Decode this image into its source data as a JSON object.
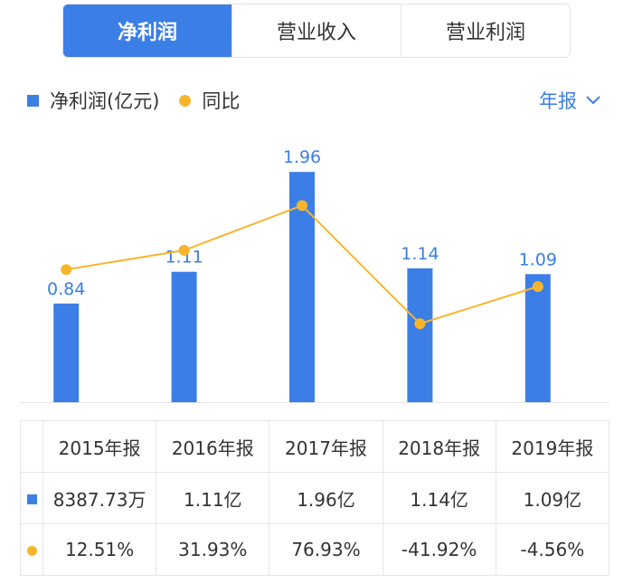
{
  "tabs": [
    {
      "label": "净利润",
      "active": true
    },
    {
      "label": "营业收入",
      "active": false
    },
    {
      "label": "营业利润",
      "active": false
    }
  ],
  "legend": {
    "bar_label": "净利润(亿元)",
    "line_label": "同比"
  },
  "period_selector": {
    "label": "年报"
  },
  "colors": {
    "bar": "#3b7fe6",
    "line": "#f7b52c",
    "positive": "#e5484d",
    "negative": "#19a35c"
  },
  "chart_data": {
    "type": "bar",
    "categories": [
      "2015年报",
      "2016年报",
      "2017年报",
      "2018年报",
      "2019年报"
    ],
    "series": [
      {
        "name": "净利润(亿元)",
        "type": "bar",
        "values": [
          0.84,
          1.11,
          1.96,
          1.14,
          1.09
        ],
        "labels": [
          "0.84",
          "1.11",
          "1.96",
          "1.14",
          "1.09"
        ]
      },
      {
        "name": "同比",
        "type": "line",
        "values": [
          12.51,
          31.93,
          76.93,
          -41.92,
          -4.56
        ]
      }
    ],
    "legend_position": "top-left",
    "grid": false
  },
  "table": {
    "headers": [
      "2015年报",
      "2016年报",
      "2017年报",
      "2018年报",
      "2019年报"
    ],
    "net_profit": [
      "8387.73万",
      "1.11亿",
      "1.96亿",
      "1.14亿",
      "1.09亿"
    ],
    "yoy": [
      "12.51%",
      "31.93%",
      "76.93%",
      "-41.92%",
      "-4.56%"
    ]
  }
}
